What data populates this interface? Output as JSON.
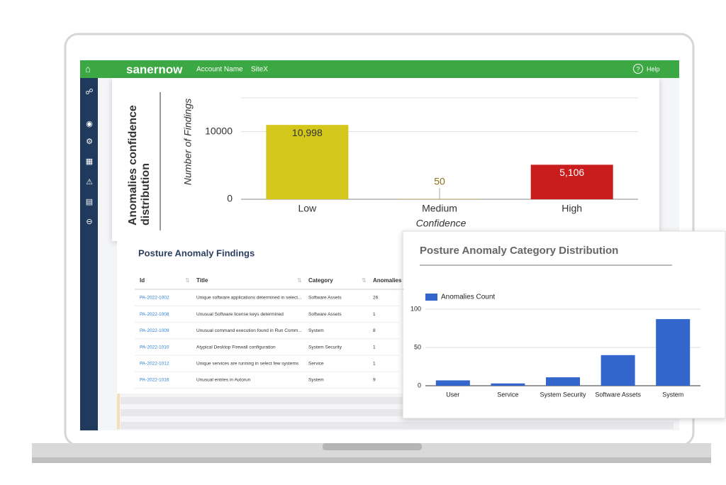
{
  "header": {
    "brand": "sanernow",
    "account": "Account Name",
    "site": "SiteX",
    "help": "Help"
  },
  "confidence_chart": {
    "type": "bar",
    "title": "Anomalies confidence distribution",
    "y_label": "Number of Findings",
    "x_label": "Confidence",
    "categories": [
      "Low",
      "Medium",
      "High"
    ],
    "values": [
      10998,
      50,
      5106
    ],
    "value_labels": [
      "10,998",
      "50",
      "5,106"
    ],
    "colors": [
      "#d3c71b",
      "#b8922c",
      "#c91c1c"
    ],
    "value_label_colors": [
      "#333333",
      "#8a6d1a",
      "#ffffff"
    ],
    "ylim": [
      0,
      15000
    ],
    "yticks": [
      0,
      10000
    ],
    "grid": true
  },
  "findings_table": {
    "title": "Posture Anomaly Findings",
    "columns": [
      "Id",
      "Title",
      "Category",
      "Anomalies"
    ],
    "rows": [
      [
        "PA-2022-1002",
        "Unique software applications determined in select...",
        "Software Assets",
        "26"
      ],
      [
        "PA-2022-1008",
        "Unusual Software license keys determined",
        "Software Assets",
        "1"
      ],
      [
        "PA-2022-1009",
        "Unusual command execution found in Run Comm...",
        "System",
        "8"
      ],
      [
        "PA-2022-1010",
        "Atypical Desktop Firewall configuration",
        "System Security",
        "1"
      ],
      [
        "PA-2022-1012",
        "Unique services are running in select few systems",
        "Service",
        "1"
      ],
      [
        "PA-2022-1016",
        "Unusual entries in Autorun",
        "System",
        "9"
      ]
    ]
  },
  "category_chart": {
    "type": "bar",
    "title": "Posture Anomaly Category Distribution",
    "categories": [
      "User",
      "Service",
      "System Security",
      "Software Assets",
      "System"
    ],
    "series": [
      {
        "name": "Anomalies Count",
        "color": "#3366cc",
        "values": [
          7,
          3,
          11,
          40,
          87
        ]
      }
    ],
    "ylim": [
      0,
      100
    ],
    "yticks": [
      0,
      50,
      100
    ],
    "grid": true
  }
}
